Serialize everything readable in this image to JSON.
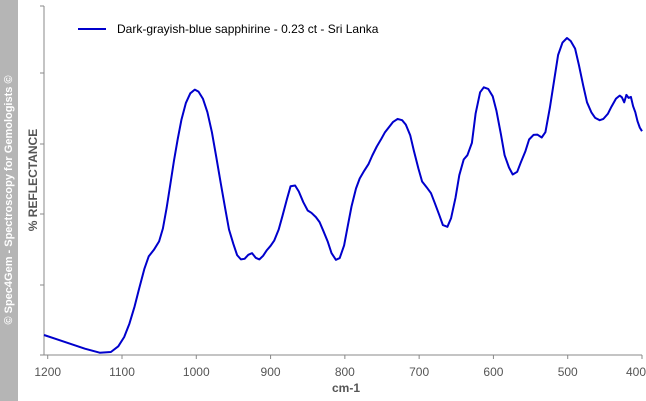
{
  "watermark": "© Spec4Gem - Spectroscopy for Gemologists ©",
  "colors": {
    "series": "#0000cc",
    "axis": "#888888",
    "band": "#b5b5b5"
  },
  "chart_data": {
    "type": "line",
    "xlabel": "cm-1",
    "ylabel": "%  REFLECTANCE",
    "xlim": [
      1205,
      400
    ],
    "ylim": [
      0,
      100
    ],
    "x_reversed": true,
    "x_ticks": [
      1200,
      1100,
      1000,
      900,
      800,
      700,
      600,
      500,
      400
    ],
    "x_tick_labels": [
      "1200",
      "1100",
      "1000",
      "900",
      "800",
      "700",
      "600",
      "500",
      "400"
    ],
    "y_ticks": [
      0,
      20,
      40,
      60,
      80,
      100
    ],
    "grid": false,
    "legend": {
      "position": "top-left"
    },
    "series": [
      {
        "name": "Dark-grayish-blue sapphirine - 0.23 ct - Sri Lanka",
        "x": [
          1205,
          1190,
          1170,
          1150,
          1130,
          1115,
          1105,
          1097,
          1090,
          1083,
          1077,
          1070,
          1064,
          1057,
          1050,
          1045,
          1040,
          1035,
          1030,
          1025,
          1020,
          1014,
          1008,
          1002,
          997,
          991,
          985,
          979,
          973,
          967,
          961,
          956,
          950,
          945,
          940,
          935,
          930,
          925,
          920,
          915,
          910,
          905,
          900,
          895,
          889,
          884,
          878,
          873,
          867,
          862,
          856,
          850,
          845,
          839,
          834,
          829,
          823,
          818,
          812,
          807,
          801,
          796,
          791,
          785,
          780,
          774,
          768,
          763,
          757,
          751,
          746,
          740,
          735,
          729,
          723,
          718,
          712,
          707,
          701,
          696,
          690,
          684,
          679,
          673,
          668,
          662,
          657,
          651,
          646,
          640,
          635,
          629,
          624,
          618,
          613,
          607,
          601,
          596,
          590,
          585,
          579,
          574,
          568,
          563,
          557,
          552,
          546,
          541,
          535,
          530,
          524,
          518,
          513,
          507,
          501,
          496,
          490,
          485,
          479,
          474,
          468,
          463,
          457,
          452,
          446,
          441,
          435,
          430,
          427,
          424,
          421,
          418,
          415,
          412,
          409,
          406,
          403,
          400
        ],
        "y": [
          5.4,
          4.3,
          2.8,
          1.3,
          0.1,
          0.3,
          2.0,
          4.8,
          8.8,
          14.0,
          19.3,
          25.2,
          29.0,
          31.0,
          33.5,
          37.4,
          43.5,
          50.6,
          57.8,
          64.2,
          70.0,
          75.1,
          78.0,
          79.1,
          78.5,
          76.3,
          72.3,
          66.3,
          58.8,
          50.9,
          43.2,
          37.1,
          32.7,
          29.4,
          28.1,
          28.3,
          29.5,
          30.0,
          28.6,
          28.1,
          29.2,
          30.9,
          32.2,
          33.8,
          37.1,
          41.2,
          46.2,
          50.1,
          50.3,
          48.5,
          45.3,
          42.8,
          42.1,
          40.8,
          39.3,
          36.7,
          33.4,
          30.0,
          28.0,
          28.5,
          32.3,
          38.2,
          44.0,
          49.4,
          52.4,
          54.7,
          56.8,
          59.3,
          62.0,
          64.3,
          66.3,
          68.0,
          69.4,
          70.3,
          69.9,
          68.6,
          65.4,
          60.7,
          55.4,
          51.5,
          49.8,
          48.0,
          45.1,
          41.5,
          38.4,
          37.9,
          40.5,
          46.6,
          53.4,
          58.1,
          59.4,
          63.1,
          71.9,
          78.3,
          79.8,
          79.3,
          77.1,
          72.8,
          65.7,
          59.4,
          55.7,
          53.6,
          54.4,
          57.3,
          60.6,
          64.1,
          65.5,
          65.6,
          64.7,
          66.3,
          73.7,
          82.2,
          89.5,
          93.2,
          94.6,
          93.7,
          91.4,
          86.5,
          80.2,
          75.3,
          72.2,
          70.6,
          69.9,
          70.3,
          71.8,
          74.0,
          76.4,
          77.3,
          76.8,
          75.3,
          77.5,
          76.6,
          76.9,
          74.1,
          72.3,
          69.6,
          67.7,
          66.6
        ]
      }
    ]
  }
}
